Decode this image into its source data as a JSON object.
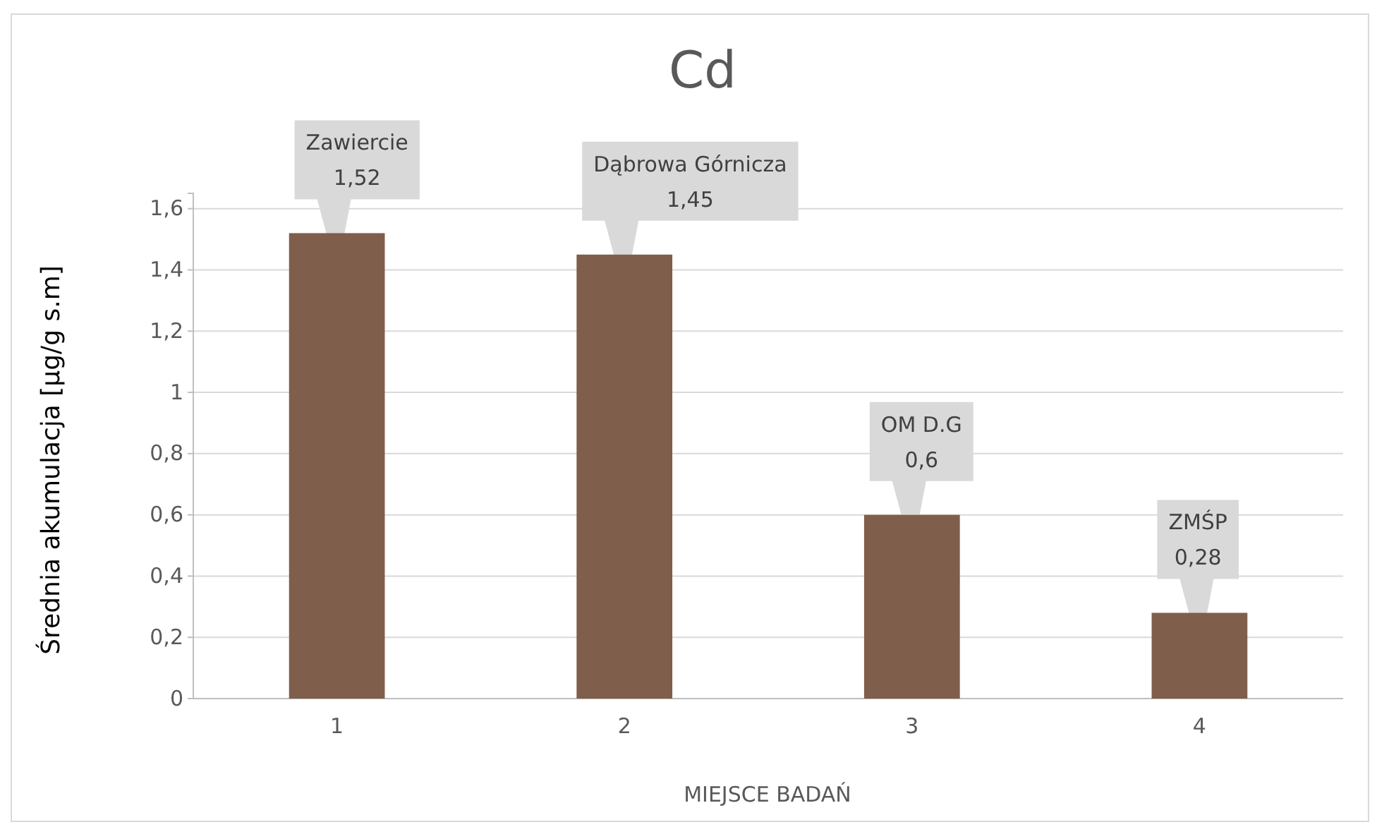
{
  "chart_data": {
    "type": "bar",
    "title": "Cd",
    "xlabel": "MIEJSCE BADAŃ",
    "ylabel": "Średnia akumulacja [μg/g s.m]",
    "categories": [
      "1",
      "2",
      "3",
      "4"
    ],
    "values": [
      1.52,
      1.45,
      0.6,
      0.28
    ],
    "value_labels": [
      "1,52",
      "1,45",
      "0,6",
      "0,28"
    ],
    "color": "#7f5e4b",
    "annotations": [
      "Zawiercie",
      "Dąbrowa Górnicza",
      "OM D.G",
      "ZMŚP"
    ],
    "ylim": [
      0,
      1.65
    ],
    "yticks": [
      0,
      {
        "value": 0.2,
        "label": "0,2"
      },
      {
        "value": 0.4,
        "label": "0,4"
      },
      {
        "value": 0.6,
        "label": "0,6"
      },
      {
        "value": 0.8,
        "label": "0,8"
      },
      1,
      {
        "value": 1.2,
        "label": "1,2"
      },
      {
        "value": 1.4,
        "label": "1,4"
      },
      {
        "value": 1.6,
        "label": "1,6"
      }
    ],
    "grid": "y"
  }
}
